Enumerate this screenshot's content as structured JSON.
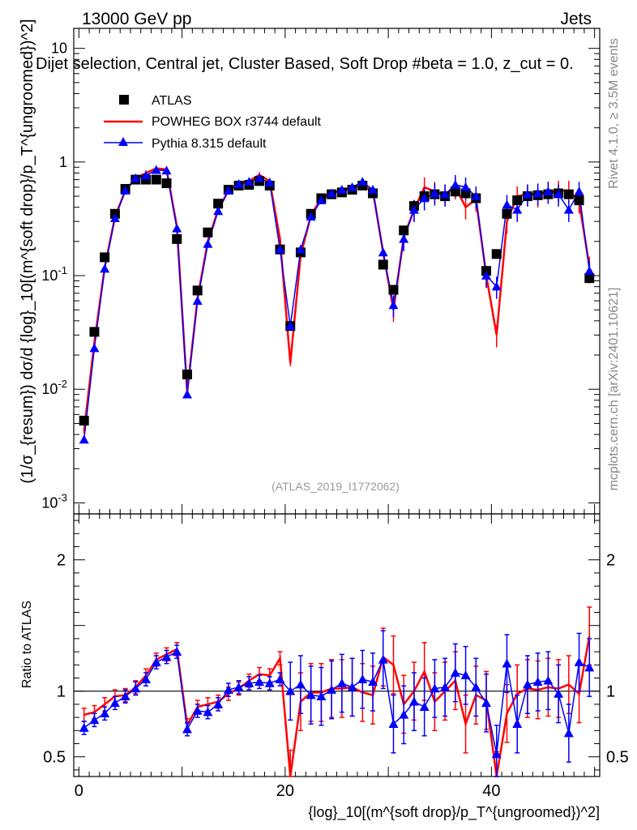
{
  "header": {
    "collision": "13000 GeV pp",
    "process": "Jets"
  },
  "title": "Dijet selection, Central jet, Cluster Based, Soft Drop #beta = 1.0, z_cut = 0.",
  "side_labels": {
    "rivet": "Rivet 4.1.0, ≥ 3.5M events",
    "mcplots": "mcplots.cern.ch [arXiv:2401.10621]"
  },
  "analysis_id": "(ATLAS_2019_I1772062)",
  "legend": {
    "atlas": "ATLAS",
    "powheg": "POWHEG BOX r3744 default",
    "pythia": "Pythia 8.315 default"
  },
  "colors": {
    "atlas": "#000000",
    "powheg": "#ff0000",
    "pythia": "#0000ff"
  },
  "chart_data": [
    {
      "type": "scatter",
      "panel": "main",
      "title": "Dijet selection, Central jet, Cluster Based, Soft Drop #beta = 1.0, z_cut = 0.",
      "ylabel": "(1/σ_{resum}) dσ/d {log}_10[(m^{soft drop}/p_T^{ungroomed})^2]",
      "xlabel": "{log}_10[(m^{soft drop}/p_T^{ungroomed})^2]",
      "yscale": "log",
      "xlim": [
        -0.5,
        50.5
      ],
      "ylim": [
        0.0008,
        15
      ],
      "x_ticks": [
        "0",
        "20",
        "40"
      ],
      "y_ticks": [
        "10^-3",
        "10^-2",
        "10^-1",
        "1",
        "10"
      ],
      "x": [
        0.5,
        1.5,
        2.5,
        3.5,
        4.5,
        5.5,
        6.5,
        7.5,
        8.5,
        9.5,
        10.5,
        11.5,
        12.5,
        13.5,
        14.5,
        15.5,
        16.5,
        17.5,
        18.5,
        19.5,
        20.5,
        21.5,
        22.5,
        23.5,
        24.5,
        25.5,
        26.5,
        27.5,
        28.5,
        29.5,
        30.5,
        31.5,
        32.5,
        33.5,
        34.5,
        35.5,
        36.5,
        37.5,
        38.5,
        39.5,
        40.5,
        41.5,
        42.5,
        43.5,
        44.5,
        45.5,
        46.5,
        47.5,
        48.5,
        49.5
      ],
      "series": [
        {
          "name": "ATLAS",
          "values": [
            0.0053,
            0.032,
            0.145,
            0.35,
            0.58,
            0.7,
            0.7,
            0.7,
            0.65,
            0.21,
            0.0135,
            0.074,
            0.24,
            0.43,
            0.57,
            0.62,
            0.63,
            0.68,
            0.62,
            0.17,
            0.036,
            0.16,
            0.35,
            0.48,
            0.52,
            0.54,
            0.57,
            0.62,
            0.53,
            0.125,
            0.075,
            0.25,
            0.41,
            0.5,
            0.52,
            0.5,
            0.55,
            0.53,
            0.48,
            0.11,
            0.155,
            0.35,
            0.46,
            0.5,
            0.51,
            0.52,
            0.53,
            0.52,
            0.46,
            0.095
          ]
        },
        {
          "name": "POWHEG BOX r3744 default",
          "values": [
            0.0043,
            0.026,
            0.118,
            0.33,
            0.56,
            0.72,
            0.8,
            0.88,
            0.86,
            0.27,
            0.0095,
            0.063,
            0.2,
            0.38,
            0.56,
            0.64,
            0.68,
            0.77,
            0.68,
            0.21,
            0.017,
            0.15,
            0.34,
            0.48,
            0.54,
            0.55,
            0.6,
            0.62,
            0.56,
            0.16,
            0.05,
            0.22,
            0.38,
            0.6,
            0.55,
            0.52,
            0.6,
            0.4,
            0.47,
            0.1,
            0.03,
            0.3,
            0.5,
            0.52,
            0.51,
            0.55,
            0.56,
            0.56,
            0.45,
            0.12
          ]
        },
        {
          "name": "Pythia 8.315 default",
          "values": [
            0.0036,
            0.023,
            0.115,
            0.32,
            0.56,
            0.72,
            0.76,
            0.85,
            0.84,
            0.26,
            0.009,
            0.06,
            0.19,
            0.37,
            0.56,
            0.64,
            0.67,
            0.72,
            0.66,
            0.17,
            0.036,
            0.17,
            0.33,
            0.46,
            0.53,
            0.57,
            0.6,
            0.67,
            0.57,
            0.16,
            0.055,
            0.21,
            0.38,
            0.48,
            0.53,
            0.52,
            0.63,
            0.6,
            0.5,
            0.1,
            0.08,
            0.42,
            0.38,
            0.52,
            0.53,
            0.55,
            0.52,
            0.38,
            0.55,
            0.11
          ]
        }
      ]
    },
    {
      "type": "line",
      "panel": "ratio",
      "ylabel": "Ratio to ATLAS",
      "xlabel": "{log}_10[(m^{soft drop}/p_T^{ungroomed})^2]",
      "xlim": [
        -0.5,
        50.5
      ],
      "ylim": [
        0.35,
        2.35
      ],
      "x_ticks": [
        "0",
        "20",
        "40"
      ],
      "y_ticks": [
        "0.5",
        "1",
        "2"
      ],
      "reference_line": 1,
      "x": [
        0.5,
        1.5,
        2.5,
        3.5,
        4.5,
        5.5,
        6.5,
        7.5,
        8.5,
        9.5,
        10.5,
        11.5,
        12.5,
        13.5,
        14.5,
        15.5,
        16.5,
        17.5,
        18.5,
        19.5,
        20.5,
        21.5,
        22.5,
        23.5,
        24.5,
        25.5,
        26.5,
        27.5,
        28.5,
        29.5,
        30.5,
        31.5,
        32.5,
        33.5,
        34.5,
        35.5,
        36.5,
        37.5,
        38.5,
        39.5,
        40.5,
        41.5,
        42.5,
        43.5,
        44.5,
        45.5,
        46.5,
        47.5,
        48.5,
        49.5
      ],
      "series": [
        {
          "name": "POWHEG BOX r3744 default",
          "values": [
            0.82,
            0.84,
            0.9,
            0.96,
            0.97,
            1.03,
            1.12,
            1.24,
            1.28,
            1.32,
            0.74,
            0.88,
            0.9,
            0.92,
            0.98,
            1.02,
            1.08,
            1.13,
            1.12,
            1.25,
            0.33,
            0.92,
            0.99,
            0.99,
            1.02,
            1.02,
            1.03,
            0.99,
            0.97,
            1.26,
            1.2,
            0.9,
            1.0,
            1.15,
            0.92,
            1.0,
            1.08,
            0.75,
            0.97,
            0.93,
            0.32,
            0.83,
            0.98,
            1.02,
            1.01,
            1.03,
            1.02,
            1.05,
            0.98,
            1.42
          ]
        },
        {
          "name": "Pythia 8.315 default",
          "values": [
            0.72,
            0.78,
            0.83,
            0.91,
            0.96,
            1.02,
            1.09,
            1.22,
            1.26,
            1.3,
            0.71,
            0.85,
            0.84,
            0.9,
            1.01,
            1.03,
            1.06,
            1.07,
            1.06,
            1.09,
            1.0,
            1.05,
            0.97,
            0.96,
            1.01,
            1.06,
            1.03,
            1.09,
            1.07,
            1.24,
            0.75,
            0.82,
            0.92,
            0.88,
            1.02,
            1.03,
            1.14,
            1.12,
            1.03,
            0.91,
            0.52,
            1.21,
            0.75,
            1.05,
            1.07,
            1.08,
            0.98,
            0.68,
            1.22,
            1.18
          ]
        }
      ]
    }
  ]
}
